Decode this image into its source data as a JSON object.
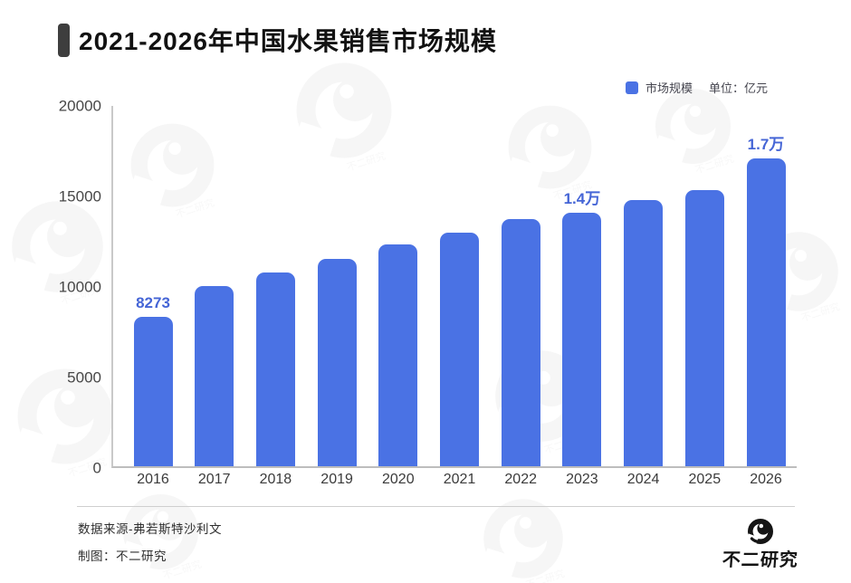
{
  "header": {
    "title": "2021-2026年中国水果销售市场规模"
  },
  "legend": {
    "series_label": "市场规模",
    "unit_label": "单位：亿元",
    "swatch_color": "#4a72e4"
  },
  "chart_data": {
    "type": "bar",
    "title": "2021-2026年中国水果销售市场规模",
    "series_name": "市场规模",
    "unit": "亿元",
    "categories": [
      "2016",
      "2017",
      "2018",
      "2019",
      "2020",
      "2021",
      "2022",
      "2023",
      "2024",
      "2025",
      "2026"
    ],
    "values": [
      8273,
      9950,
      10700,
      11450,
      12250,
      12900,
      13650,
      14000,
      14700,
      15250,
      17000
    ],
    "bar_labels": [
      "8273",
      "",
      "",
      "",
      "",
      "",
      "",
      "1.4万",
      "",
      "",
      "1.7万"
    ],
    "ylim": [
      0,
      20000
    ],
    "yticks": [
      0,
      5000,
      10000,
      15000,
      20000
    ],
    "grid": false,
    "legend_position": "top-right",
    "bar_color": "#4a72e4",
    "label_color": "#4565d6"
  },
  "footer": {
    "source": "数据来源-弗若斯特沙利文",
    "credit": "制图：不二研究",
    "logo_text": "不二研究"
  }
}
